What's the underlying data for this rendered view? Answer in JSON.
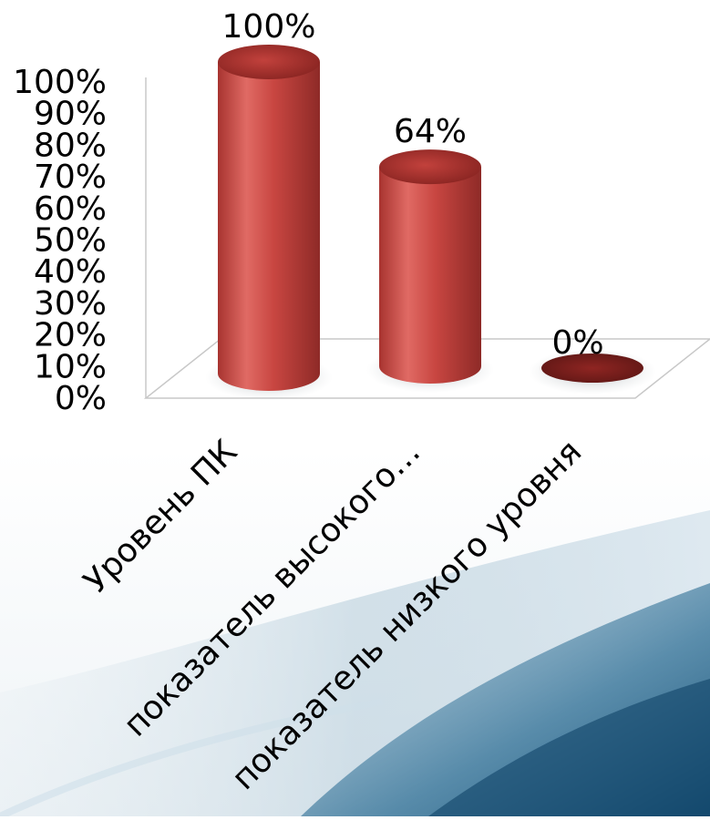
{
  "chart_data": {
    "type": "bar",
    "style": "3d-cylinder",
    "categories": [
      "Уровень ПК",
      "показатель высокого…",
      "показатель низкого уровня"
    ],
    "values": [
      100,
      64,
      0
    ],
    "data_labels": [
      "100%",
      "64%",
      "0%"
    ],
    "ylim": [
      0,
      100
    ],
    "yticks": [
      "0%",
      "10%",
      "20%",
      "30%",
      "40%",
      "50%",
      "60%",
      "70%",
      "80%",
      "90%",
      "100%"
    ],
    "grid": false,
    "legend": "none",
    "bar_color": "#c0403c"
  }
}
